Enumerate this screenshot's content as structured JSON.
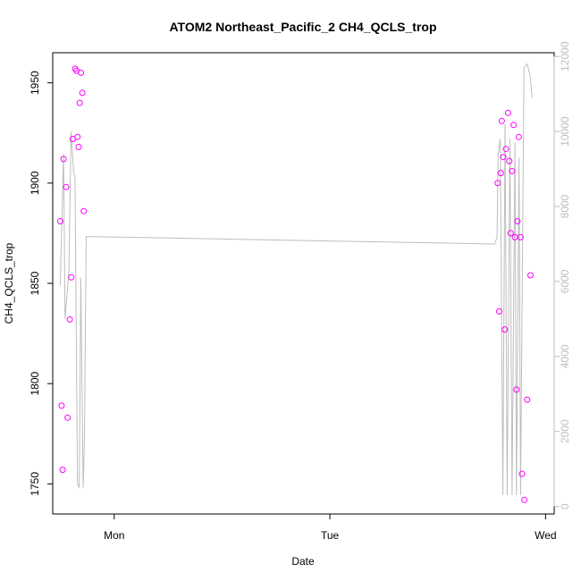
{
  "chart_data": {
    "type": "scatter",
    "title": "ATOM2 Northeast_Pacific_2 CH4_QCLS_trop",
    "xlabel": "Date",
    "ylabel": "CH4_QCLS_trop",
    "x_unit": "days since Sunday 00:00",
    "x_ticks": [
      {
        "label": "Mon",
        "value": 1.0
      },
      {
        "label": "Tue",
        "value": 2.0
      },
      {
        "label": "Wed",
        "value": 3.0
      }
    ],
    "xlim": [
      0.715,
      3.04
    ],
    "ylim": [
      1735,
      1965
    ],
    "y_ticks": [
      1750,
      1800,
      1850,
      1900,
      1950
    ],
    "y2lim": [
      -200,
      12100
    ],
    "y2_ticks": [
      0,
      2000,
      4000,
      6000,
      8000,
      10000,
      12000
    ],
    "grid": false,
    "series": [
      {
        "color": "#ff00ff",
        "marker": "open-circle",
        "axis": "left",
        "points": [
          {
            "x": 0.75,
            "y": 1881
          },
          {
            "x": 0.756,
            "y": 1789
          },
          {
            "x": 0.761,
            "y": 1757
          },
          {
            "x": 0.765,
            "y": 1912
          },
          {
            "x": 0.777,
            "y": 1898
          },
          {
            "x": 0.784,
            "y": 1783
          },
          {
            "x": 0.794,
            "y": 1832
          },
          {
            "x": 0.801,
            "y": 1853
          },
          {
            "x": 0.808,
            "y": 1922
          },
          {
            "x": 0.819,
            "y": 1957
          },
          {
            "x": 0.825,
            "y": 1956
          },
          {
            "x": 0.83,
            "y": 1923
          },
          {
            "x": 0.835,
            "y": 1918
          },
          {
            "x": 0.84,
            "y": 1940
          },
          {
            "x": 0.846,
            "y": 1955
          },
          {
            "x": 0.852,
            "y": 1945
          },
          {
            "x": 0.859,
            "y": 1886
          },
          {
            "x": 2.778,
            "y": 1900
          },
          {
            "x": 2.785,
            "y": 1836
          },
          {
            "x": 2.792,
            "y": 1905
          },
          {
            "x": 2.797,
            "y": 1931
          },
          {
            "x": 2.804,
            "y": 1913
          },
          {
            "x": 2.811,
            "y": 1827
          },
          {
            "x": 2.816,
            "y": 1917
          },
          {
            "x": 2.826,
            "y": 1935
          },
          {
            "x": 2.832,
            "y": 1911
          },
          {
            "x": 2.838,
            "y": 1875
          },
          {
            "x": 2.845,
            "y": 1906
          },
          {
            "x": 2.852,
            "y": 1929
          },
          {
            "x": 2.858,
            "y": 1873
          },
          {
            "x": 2.865,
            "y": 1797
          },
          {
            "x": 2.87,
            "y": 1881
          },
          {
            "x": 2.876,
            "y": 1923
          },
          {
            "x": 2.884,
            "y": 1873
          },
          {
            "x": 2.891,
            "y": 1755
          },
          {
            "x": 2.902,
            "y": 1742
          },
          {
            "x": 2.915,
            "y": 1792
          },
          {
            "x": 2.93,
            "y": 1854
          }
        ]
      },
      {
        "color": "#bdbdbd",
        "marker": "line",
        "axis": "right",
        "points": [
          {
            "x": 0.75,
            "y": 5900
          },
          {
            "x": 0.765,
            "y": 9400
          },
          {
            "x": 0.772,
            "y": 5000
          },
          {
            "x": 0.79,
            "y": 6300
          },
          {
            "x": 0.8,
            "y": 10000
          },
          {
            "x": 0.812,
            "y": 8900
          },
          {
            "x": 0.818,
            "y": 8800
          },
          {
            "x": 0.83,
            "y": 600
          },
          {
            "x": 0.838,
            "y": 500
          },
          {
            "x": 0.845,
            "y": 6100
          },
          {
            "x": 0.856,
            "y": 500
          },
          {
            "x": 0.862,
            "y": 1800
          },
          {
            "x": 0.87,
            "y": 7200
          },
          {
            "x": 2.765,
            "y": 7000
          },
          {
            "x": 2.775,
            "y": 7200
          },
          {
            "x": 2.78,
            "y": 9400
          },
          {
            "x": 2.79,
            "y": 9800
          },
          {
            "x": 2.802,
            "y": 300
          },
          {
            "x": 2.812,
            "y": 10200
          },
          {
            "x": 2.822,
            "y": 300
          },
          {
            "x": 2.835,
            "y": 9800
          },
          {
            "x": 2.845,
            "y": 300
          },
          {
            "x": 2.858,
            "y": 9700
          },
          {
            "x": 2.865,
            "y": 300
          },
          {
            "x": 2.877,
            "y": 9300
          },
          {
            "x": 2.884,
            "y": 300
          },
          {
            "x": 2.9,
            "y": 11700
          },
          {
            "x": 2.915,
            "y": 11800
          },
          {
            "x": 2.928,
            "y": 11500
          },
          {
            "x": 2.938,
            "y": 10900
          }
        ]
      }
    ]
  }
}
